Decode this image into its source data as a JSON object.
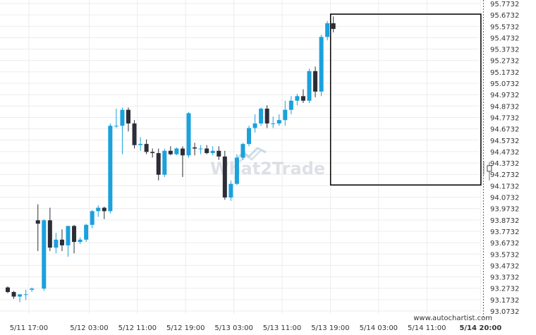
{
  "chart_data": {
    "type": "candlestick",
    "title": "",
    "xlabel": "",
    "ylabel": "",
    "ylim": [
      93.0732,
      95.7732
    ],
    "y_ticks": [
      "95.7732",
      "95.6732",
      "95.5732",
      "95.4732",
      "95.3732",
      "95.2732",
      "95.1732",
      "95.0732",
      "94.9732",
      "94.8732",
      "94.7732",
      "94.6732",
      "94.5732",
      "94.4732",
      "94.3732",
      "94.2732",
      "94.1732",
      "94.0732",
      "93.9732",
      "93.8732",
      "93.7732",
      "93.6732",
      "93.5732",
      "93.4732",
      "93.3732",
      "93.2732",
      "93.1732",
      "93.0732"
    ],
    "x_ticks": [
      {
        "label": "5/11 17:00",
        "index": 3.5
      },
      {
        "label": "5/12 03:00",
        "index": 13.5
      },
      {
        "label": "5/12 11:00",
        "index": 21.5
      },
      {
        "label": "5/12 19:00",
        "index": 29.5
      },
      {
        "label": "5/13 03:00",
        "index": 37.5
      },
      {
        "label": "5/13 11:00",
        "index": 45.5
      },
      {
        "label": "5/13 19:00",
        "index": 53.5
      },
      {
        "label": "5/14 03:00",
        "index": 61.5
      },
      {
        "label": "5/14 11:00",
        "index": 69.5
      },
      {
        "label": "5/14 20:00",
        "index": 78.4,
        "bold": true
      }
    ],
    "up_color": "#1ba1dc",
    "down_color": "#2d2d37",
    "candles": [
      {
        "o": 93.28,
        "h": 93.29,
        "l": 93.23,
        "c": 93.24
      },
      {
        "o": 93.24,
        "h": 93.25,
        "l": 93.18,
        "c": 93.2
      },
      {
        "o": 93.2,
        "h": 93.22,
        "l": 93.15,
        "c": 93.22
      },
      {
        "o": 93.22,
        "h": 93.26,
        "l": 93.17,
        "c": 93.22
      },
      {
        "o": 93.26,
        "h": 93.28,
        "l": 93.24,
        "c": 93.27
      },
      {
        "o": 93.87,
        "h": 94.01,
        "l": 93.6,
        "c": 93.84
      },
      {
        "o": 93.27,
        "h": 93.88,
        "l": 93.25,
        "c": 93.87
      },
      {
        "o": 93.87,
        "h": 93.98,
        "l": 93.6,
        "c": 93.63
      },
      {
        "o": 93.63,
        "h": 93.76,
        "l": 93.58,
        "c": 93.7
      },
      {
        "o": 93.7,
        "h": 93.79,
        "l": 93.6,
        "c": 93.65
      },
      {
        "o": 93.65,
        "h": 93.82,
        "l": 93.55,
        "c": 93.82
      },
      {
        "o": 93.82,
        "h": 93.83,
        "l": 93.58,
        "c": 93.68
      },
      {
        "o": 93.68,
        "h": 93.72,
        "l": 93.66,
        "c": 93.7
      },
      {
        "o": 93.7,
        "h": 93.84,
        "l": 93.68,
        "c": 93.83
      },
      {
        "o": 93.83,
        "h": 93.96,
        "l": 93.8,
        "c": 93.95
      },
      {
        "o": 93.95,
        "h": 94.0,
        "l": 93.9,
        "c": 93.98
      },
      {
        "o": 93.98,
        "h": 93.99,
        "l": 93.88,
        "c": 93.95
      },
      {
        "o": 93.95,
        "h": 94.72,
        "l": 93.93,
        "c": 94.7
      },
      {
        "o": 94.7,
        "h": 94.85,
        "l": 94.68,
        "c": 94.7
      },
      {
        "o": 94.7,
        "h": 94.86,
        "l": 94.45,
        "c": 94.84
      },
      {
        "o": 94.84,
        "h": 94.86,
        "l": 94.65,
        "c": 94.72
      },
      {
        "o": 94.72,
        "h": 94.75,
        "l": 94.5,
        "c": 94.53
      },
      {
        "o": 94.53,
        "h": 94.6,
        "l": 94.48,
        "c": 94.54
      },
      {
        "o": 94.54,
        "h": 94.58,
        "l": 94.45,
        "c": 94.47
      },
      {
        "o": 94.47,
        "h": 94.5,
        "l": 94.42,
        "c": 94.46
      },
      {
        "o": 94.46,
        "h": 94.5,
        "l": 94.22,
        "c": 94.27
      },
      {
        "o": 94.27,
        "h": 94.5,
        "l": 94.25,
        "c": 94.48
      },
      {
        "o": 94.48,
        "h": 94.52,
        "l": 94.44,
        "c": 94.45
      },
      {
        "o": 94.45,
        "h": 94.51,
        "l": 94.44,
        "c": 94.5
      },
      {
        "o": 94.5,
        "h": 94.52,
        "l": 94.25,
        "c": 94.44
      },
      {
        "o": 94.44,
        "h": 94.82,
        "l": 94.42,
        "c": 94.81
      },
      {
        "o": 94.51,
        "h": 94.55,
        "l": 94.44,
        "c": 94.5
      },
      {
        "o": 94.5,
        "h": 94.53,
        "l": 94.45,
        "c": 94.5
      },
      {
        "o": 94.5,
        "h": 94.53,
        "l": 94.45,
        "c": 94.46
      },
      {
        "o": 94.46,
        "h": 94.52,
        "l": 94.44,
        "c": 94.48
      },
      {
        "o": 94.48,
        "h": 94.52,
        "l": 94.4,
        "c": 94.43
      },
      {
        "o": 94.43,
        "h": 94.48,
        "l": 94.05,
        "c": 94.07
      },
      {
        "o": 94.07,
        "h": 94.22,
        "l": 94.04,
        "c": 94.19
      },
      {
        "o": 94.19,
        "h": 94.45,
        "l": 94.18,
        "c": 94.42
      },
      {
        "o": 94.42,
        "h": 94.55,
        "l": 94.4,
        "c": 94.54
      },
      {
        "o": 94.54,
        "h": 94.7,
        "l": 94.52,
        "c": 94.68
      },
      {
        "o": 94.68,
        "h": 94.8,
        "l": 94.64,
        "c": 94.72
      },
      {
        "o": 94.72,
        "h": 94.86,
        "l": 94.7,
        "c": 94.85
      },
      {
        "o": 94.85,
        "h": 94.88,
        "l": 94.68,
        "c": 94.72
      },
      {
        "o": 94.72,
        "h": 94.78,
        "l": 94.68,
        "c": 94.72
      },
      {
        "o": 94.72,
        "h": 94.8,
        "l": 94.7,
        "c": 94.75
      },
      {
        "o": 94.75,
        "h": 94.92,
        "l": 94.7,
        "c": 94.84
      },
      {
        "o": 94.84,
        "h": 94.96,
        "l": 94.8,
        "c": 94.92
      },
      {
        "o": 94.92,
        "h": 94.98,
        "l": 94.88,
        "c": 94.96
      },
      {
        "o": 94.96,
        "h": 95.02,
        "l": 94.9,
        "c": 94.92
      },
      {
        "o": 94.92,
        "h": 95.2,
        "l": 94.9,
        "c": 95.18
      },
      {
        "o": 95.18,
        "h": 95.22,
        "l": 94.95,
        "c": 95.0
      },
      {
        "o": 95.0,
        "h": 95.5,
        "l": 94.96,
        "c": 95.48
      },
      {
        "o": 95.48,
        "h": 95.62,
        "l": 95.45,
        "c": 95.6
      },
      {
        "o": 95.6,
        "h": 95.66,
        "l": 95.52,
        "c": 95.55
      }
    ]
  },
  "overlay": {
    "rectangle_start_index": 54,
    "rectangle_end_index": 78,
    "rectangle_top": 95.68,
    "rectangle_bottom": 94.18,
    "rectangle_color": "#000000",
    "forecast_index": 79
  },
  "watermark": "What2Trade",
  "credit": "www.autochartist.com"
}
